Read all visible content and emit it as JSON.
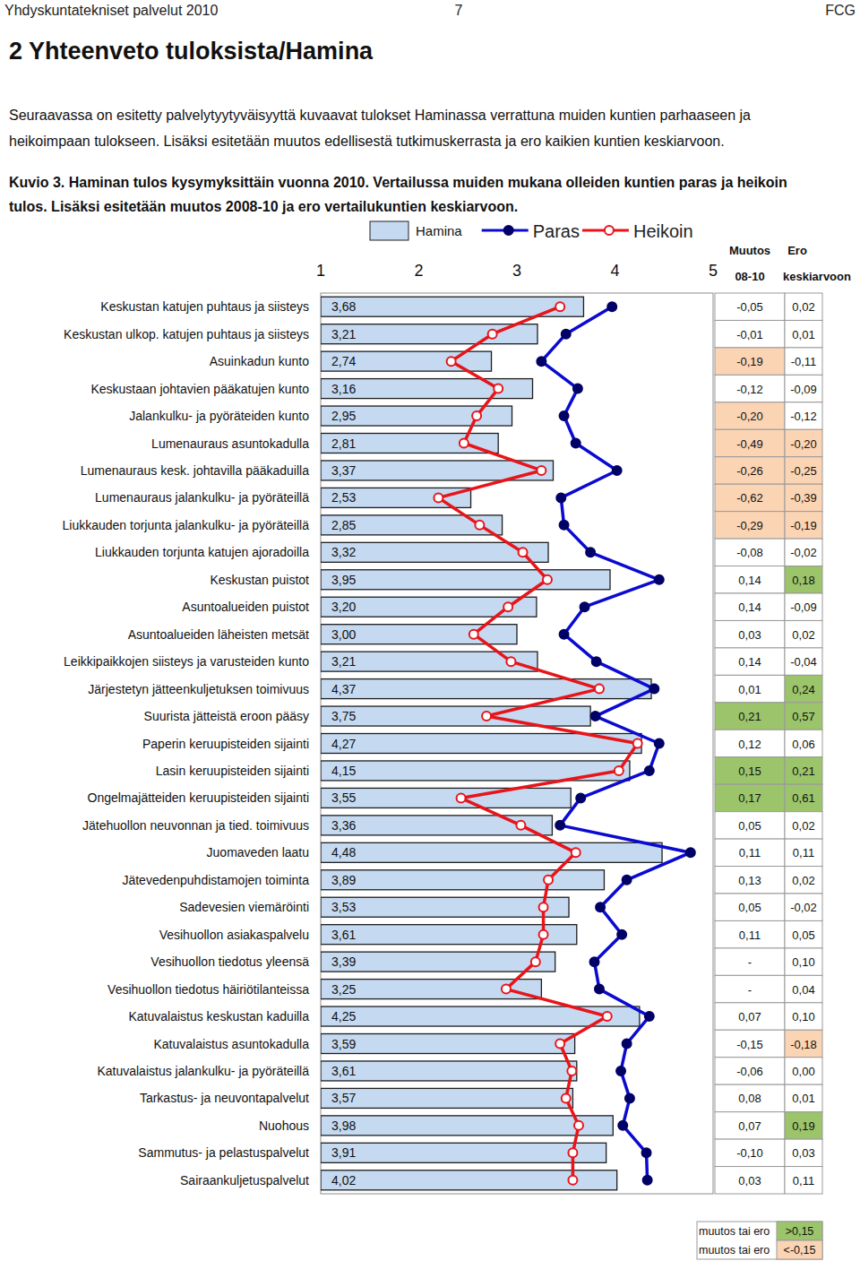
{
  "page": {
    "header_left": "Yhdyskuntatekniset palvelut 2010",
    "page_number": "7",
    "header_right": "FCG",
    "heading": "2 Yhteenveto tuloksista/Hamina",
    "paragraph": [
      "Seuraavassa on esitetty palvelytyytyväisyyttä kuvaavat tulokset Haminassa verrattuna muiden kuntien parhaaseen ja",
      "heikoimpaan tulokseen. Lisäksi esitetään muutos edellisestä tutkimuskerrasta ja ero kaikien kuntien keskiarvoon."
    ],
    "caption": [
      "Kuvio 3. Haminan tulos kysymyksittäin vuonna 2010. Vertailussa muiden mukana olleiden kuntien paras ja heikoin",
      "tulos. Lisäksi esitetään muutos 2008-10 ja ero vertailukuntien keskiarvoon."
    ]
  },
  "chart_data": {
    "type": "bar",
    "orientation": "horizontal",
    "legend": "top",
    "grid": false,
    "data_labels": true,
    "xlim": [
      1,
      5
    ],
    "xticks": [
      1,
      2,
      3,
      4,
      5
    ],
    "categories": [
      "Keskustan katujen puhtaus ja siisteys",
      "Keskustan ulkop. katujen puhtaus ja siisteys",
      "Asuinkadun kunto",
      "Keskustaan johtavien pääkatujen kunto",
      "Jalankulku- ja pyöräteiden kunto",
      "Lumenauraus asuntokadulla",
      "Lumenauraus kesk. johtavilla pääkaduilla",
      "Lumenauraus jalankulku- ja pyöräteillä",
      "Liukkauden torjunta jalankulku- ja pyöräteillä",
      "Liukkauden torjunta katujen ajoradoilla",
      "Keskustan puistot",
      "Asuntoalueiden puistot",
      "Asuntoalueiden läheisten metsät",
      "Leikkipaikkojen siisteys ja varusteiden kunto",
      "Järjestetyn jätteenkuljetuksen toimivuus",
      "Suurista jätteistä eroon pääsy",
      "Paperin keruupisteiden sijainti",
      "Lasin keruupisteiden sijainti",
      "Ongelmajätteiden keruupisteiden sijainti",
      "Jätehuollon neuvonnan ja tied. toimivuus",
      "Juomaveden laatu",
      "Jätevedenpuhdistamojen toiminta",
      "Sadevesien viemäröinti",
      "Vesihuollon asiakaspalvelu",
      "Vesihuollon tiedotus yleensä",
      "Vesihuollon tiedotus häiriötilanteissa",
      "Katuvalaistus keskustan kaduilla",
      "Katuvalaistus asuntokadulla",
      "Katuvalaistus jalankulku- ja pyöräteillä",
      "Tarkastus- ja neuvontapalvelut",
      "Nuohous",
      "Sammutus- ja pelastuspalvelut",
      "Sairaankuljetuspalvelut"
    ],
    "series": [
      {
        "name": "Hamina",
        "type": "bar",
        "color": "#c5d9f1",
        "values": [
          3.68,
          3.21,
          2.74,
          3.16,
          2.95,
          2.81,
          3.37,
          2.53,
          2.85,
          3.32,
          3.95,
          3.2,
          3,
          3.21,
          4.37,
          3.75,
          4.27,
          4.15,
          3.55,
          3.36,
          4.48,
          3.89,
          3.53,
          3.61,
          3.39,
          3.25,
          4.25,
          3.59,
          3.61,
          3.57,
          3.98,
          3.91,
          4.02
        ],
        "value_labels": [
          "3,68",
          "3,21",
          "2,74",
          "3,16",
          "2,95",
          "2,81",
          "3,37",
          "2,53",
          "2,85",
          "3,32",
          "3,95",
          "3,20",
          "3,00",
          "3,21",
          "4,37",
          "3,75",
          "4,27",
          "4,15",
          "3,55",
          "3,36",
          "4,48",
          "3,89",
          "3,53",
          "3,61",
          "3,39",
          "3,25",
          "4,25",
          "3,59",
          "3,61",
          "3,57",
          "3,98",
          "3,91",
          "4,02"
        ]
      },
      {
        "name": "Paras",
        "type": "line",
        "color": "#0a0ad0",
        "marker": "circle",
        "line_style": "solid",
        "values": [
          3.97,
          3.5,
          3.25,
          3.62,
          3.48,
          3.6,
          4.02,
          3.45,
          3.48,
          3.75,
          4.45,
          3.69,
          3.48,
          3.81,
          4.4,
          3.8,
          4.45,
          4.35,
          3.65,
          3.44,
          4.77,
          4.12,
          3.85,
          4.07,
          3.79,
          3.84,
          4.35,
          4.12,
          4.06,
          4.15,
          4.08,
          4.32,
          4.33
        ]
      },
      {
        "name": "Heikoin",
        "type": "line",
        "color": "#e8141a",
        "marker": "open-circle",
        "line_style": "solid",
        "values": [
          3.44,
          2.75,
          2.33,
          2.81,
          2.59,
          2.46,
          3.25,
          2.2,
          2.62,
          3.06,
          3.31,
          2.91,
          2.56,
          2.94,
          3.84,
          2.69,
          4.23,
          4.04,
          2.43,
          3.04,
          3.6,
          3.32,
          3.27,
          3.27,
          3.19,
          2.89,
          3.92,
          3.44,
          3.56,
          3.5,
          3.63,
          3.57,
          3.57
        ]
      }
    ],
    "change": {
      "title": "Muutos",
      "subtitle": "08-10",
      "values": [
        -0.05,
        -0.01,
        -0.19,
        -0.12,
        -0.2,
        -0.49,
        -0.26,
        -0.62,
        -0.29,
        -0.08,
        0.14,
        0.14,
        0.03,
        0.14,
        0.01,
        0.21,
        0.12,
        0.15,
        0.17,
        0.05,
        0.11,
        0.13,
        0.05,
        0.11,
        null,
        null,
        0.07,
        -0.15,
        -0.06,
        0.08,
        0.07,
        -0.1,
        0.03
      ],
      "value_labels": [
        "-0,05",
        "-0,01",
        "-0,19",
        "-0,12",
        "-0,20",
        "-0,49",
        "-0,26",
        "-0,62",
        "-0,29",
        "-0,08",
        "0,14",
        "0,14",
        "0,03",
        "0,14",
        "0,01",
        "0,21",
        "0,12",
        "0,15",
        "0,17",
        "0,05",
        "0,11",
        "0,13",
        "0,05",
        "0,11",
        "-",
        "-",
        "0,07",
        "-0,15",
        "-0,06",
        "0,08",
        "0,07",
        "-0,10",
        "0,03"
      ],
      "colors": [
        "#ffffff",
        "#ffffff",
        "#fbd4b4",
        "#ffffff",
        "#fbd4b4",
        "#fbd4b4",
        "#fbd4b4",
        "#fbd4b4",
        "#fbd4b4",
        "#ffffff",
        "#ffffff",
        "#ffffff",
        "#ffffff",
        "#ffffff",
        "#ffffff",
        "#9bc46b",
        "#ffffff",
        "#9bc46b",
        "#9bc46b",
        "#ffffff",
        "#ffffff",
        "#ffffff",
        "#ffffff",
        "#ffffff",
        "#ffffff",
        "#ffffff",
        "#ffffff",
        "#ffffff",
        "#ffffff",
        "#ffffff",
        "#ffffff",
        "#ffffff",
        "#ffffff"
      ]
    },
    "difference": {
      "title": "Ero",
      "subtitle": "keskiarvoon",
      "values": [
        0.02,
        0.01,
        -0.11,
        -0.09,
        -0.12,
        -0.2,
        -0.25,
        -0.39,
        -0.19,
        -0.02,
        0.18,
        -0.09,
        0.02,
        -0.04,
        0.24,
        0.57,
        0.06,
        0.21,
        0.61,
        0.02,
        0.11,
        0.02,
        -0.02,
        0.05,
        0.1,
        0.04,
        0.1,
        -0.18,
        0,
        0.01,
        0.19,
        0.03,
        0.11
      ],
      "value_labels": [
        "0,02",
        "0,01",
        "-0,11",
        "-0,09",
        "-0,12",
        "-0,20",
        "-0,25",
        "-0,39",
        "-0,19",
        "-0,02",
        "0,18",
        "-0,09",
        "0,02",
        "-0,04",
        "0,24",
        "0,57",
        "0,06",
        "0,21",
        "0,61",
        "0,02",
        "0,11",
        "0,02",
        "-0,02",
        "0,05",
        "0,10",
        "0,04",
        "0,10",
        "-0,18",
        "0,00",
        "0,01",
        "0,19",
        "0,03",
        "0,11"
      ],
      "colors": [
        "#ffffff",
        "#ffffff",
        "#ffffff",
        "#ffffff",
        "#ffffff",
        "#fbd4b4",
        "#fbd4b4",
        "#fbd4b4",
        "#fbd4b4",
        "#ffffff",
        "#9bc46b",
        "#ffffff",
        "#ffffff",
        "#ffffff",
        "#9bc46b",
        "#9bc46b",
        "#ffffff",
        "#9bc46b",
        "#9bc46b",
        "#ffffff",
        "#ffffff",
        "#ffffff",
        "#ffffff",
        "#ffffff",
        "#ffffff",
        "#ffffff",
        "#ffffff",
        "#fbd4b4",
        "#ffffff",
        "#ffffff",
        "#9bc46b",
        "#ffffff",
        "#ffffff"
      ]
    },
    "highlight_legend": {
      "items": [
        {
          "label": "muutos tai ero",
          "value_label": ">0,15",
          "color": "#9bc46b"
        },
        {
          "label": "muutos tai ero",
          "value_label": "<-0,15",
          "color": "#fbd4b4"
        }
      ]
    }
  }
}
